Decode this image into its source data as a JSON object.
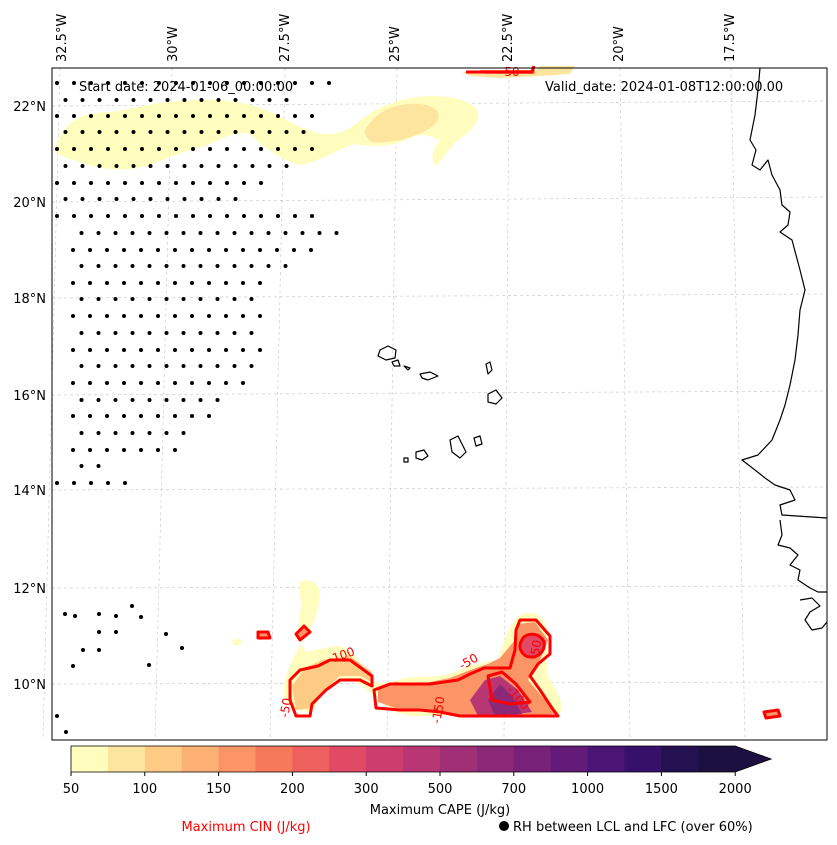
{
  "map": {
    "start_date": "Start date: 2024-01-06_00:00:00",
    "valid_date": "Valid_date: 2024-01-08T12:00:00.00",
    "lon_labels": [
      "32.5°W",
      "30°W",
      "27.5°W",
      "25°W",
      "22.5°W",
      "20°W",
      "17.5°W"
    ],
    "lat_labels": [
      "22°N",
      "20°N",
      "18°N",
      "16°N",
      "14°N",
      "12°N",
      "10°N"
    ],
    "cin_contour_labels": [
      "-50",
      "-100",
      "-50",
      "-150",
      "-50",
      "-100",
      "-50"
    ]
  },
  "colorbar": {
    "title": "Maximum CAPE (J/kg)",
    "ticks": [
      "50",
      "100",
      "150",
      "200",
      "300",
      "500",
      "700",
      "1000",
      "1500",
      "2000"
    ],
    "colors": [
      "#fffdbd",
      "#fee59f",
      "#fecb85",
      "#fdb074",
      "#fc9565",
      "#f7795c",
      "#ee605e",
      "#e04a65",
      "#cb3e6d",
      "#b73673",
      "#a12f76",
      "#8c2878",
      "#772179",
      "#621b79",
      "#4b1575",
      "#361069",
      "#231150",
      "#1b1040"
    ]
  },
  "legend": {
    "cin_label": "Maximum CIN (J/kg)",
    "cin_color": "#ff0000",
    "rh_label": "RH between LCL and LFC (over 60%)"
  }
}
